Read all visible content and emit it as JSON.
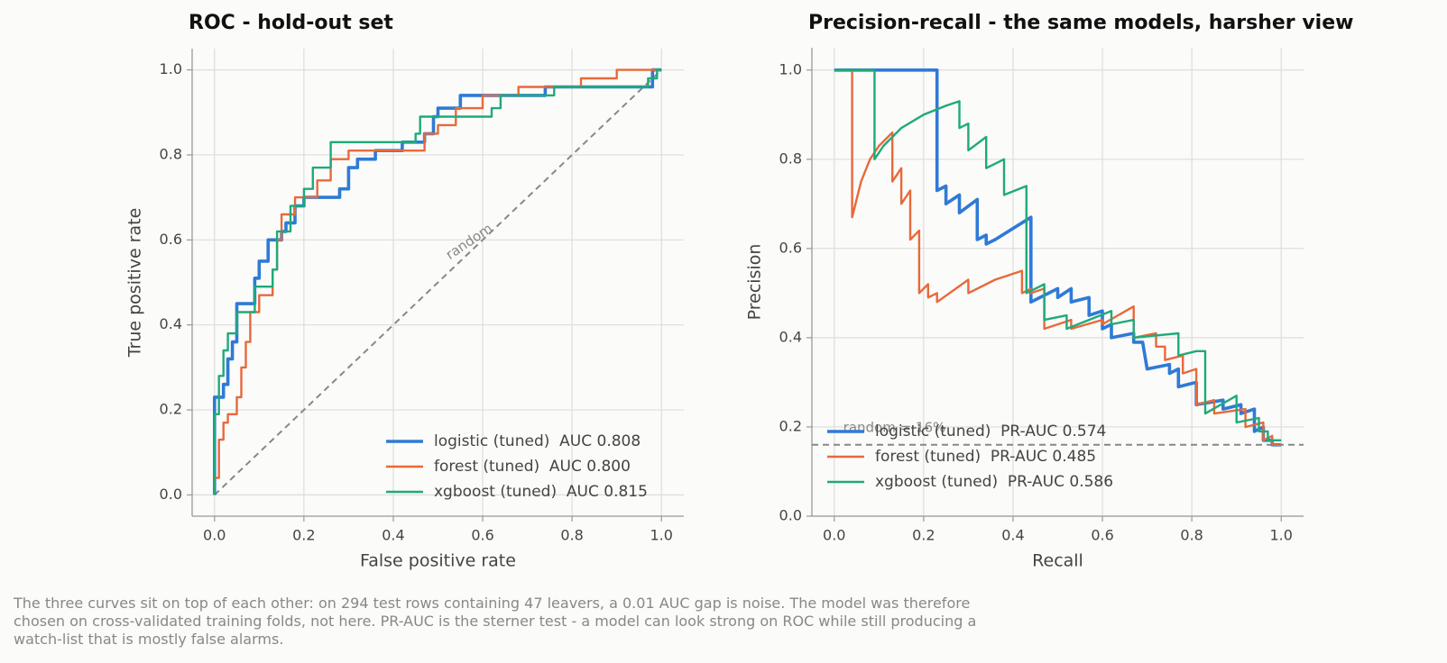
{
  "chart_data": [
    {
      "type": "line",
      "title": "ROC - hold-out set",
      "x_label": "False positive rate",
      "y_label": "True positive rate",
      "xlim": [
        -0.05,
        1.05
      ],
      "ylim": [
        -0.05,
        1.05
      ],
      "xticks": [
        {
          "value": 0,
          "label": "0.0"
        },
        0.2,
        0.4,
        0.6,
        0.8,
        {
          "value": 1,
          "label": "1.0"
        }
      ],
      "yticks": [
        {
          "value": 0,
          "label": "0.0"
        },
        0.2,
        0.4,
        0.6,
        0.8,
        {
          "value": 1,
          "label": "1.0"
        }
      ],
      "grid": true,
      "legend": "lower right",
      "reference": {
        "x": [
          0,
          1
        ],
        "values": [
          0,
          1
        ],
        "color": "#888888"
      },
      "reference_label": "random",
      "series": [
        {
          "name": "logistic (tuned)  AUC 0.808",
          "color": "#2f7ad6",
          "x": [
            0,
            0,
            0.02,
            0.02,
            0.03,
            0.03,
            0.04,
            0.04,
            0.05,
            0.05,
            0.09,
            0.09,
            0.1,
            0.1,
            0.12,
            0.12,
            0.15,
            0.15,
            0.16,
            0.16,
            0.18,
            0.18,
            0.2,
            0.2,
            0.28,
            0.28,
            0.3,
            0.3,
            0.32,
            0.32,
            0.36,
            0.36,
            0.42,
            0.42,
            0.47,
            0.47,
            0.49,
            0.49,
            0.5,
            0.5,
            0.55,
            0.55,
            0.74,
            0.74,
            0.98,
            0.98,
            1.0
          ],
          "values": [
            0,
            0.23,
            0.23,
            0.26,
            0.26,
            0.32,
            0.32,
            0.36,
            0.36,
            0.45,
            0.45,
            0.51,
            0.51,
            0.55,
            0.55,
            0.6,
            0.6,
            0.62,
            0.62,
            0.64,
            0.64,
            0.68,
            0.68,
            0.7,
            0.7,
            0.72,
            0.72,
            0.77,
            0.77,
            0.79,
            0.79,
            0.81,
            0.81,
            0.83,
            0.83,
            0.85,
            0.85,
            0.89,
            0.89,
            0.91,
            0.91,
            0.94,
            0.94,
            0.96,
            0.96,
            1.0,
            1.0
          ]
        },
        {
          "name": "forest (tuned)  AUC 0.800",
          "color": "#e8693a",
          "x": [
            0,
            0,
            0.01,
            0.01,
            0.02,
            0.02,
            0.03,
            0.03,
            0.05,
            0.05,
            0.06,
            0.06,
            0.07,
            0.07,
            0.08,
            0.08,
            0.1,
            0.1,
            0.13,
            0.13,
            0.14,
            0.14,
            0.15,
            0.15,
            0.18,
            0.18,
            0.23,
            0.23,
            0.26,
            0.26,
            0.3,
            0.3,
            0.47,
            0.47,
            0.5,
            0.5,
            0.54,
            0.54,
            0.6,
            0.6,
            0.68,
            0.68,
            0.82,
            0.82,
            0.9,
            0.9,
            1.0
          ],
          "values": [
            0,
            0.04,
            0.04,
            0.13,
            0.13,
            0.17,
            0.17,
            0.19,
            0.19,
            0.23,
            0.23,
            0.3,
            0.3,
            0.36,
            0.36,
            0.43,
            0.43,
            0.47,
            0.47,
            0.53,
            0.53,
            0.6,
            0.6,
            0.66,
            0.66,
            0.7,
            0.7,
            0.74,
            0.74,
            0.79,
            0.79,
            0.81,
            0.81,
            0.85,
            0.85,
            0.87,
            0.87,
            0.91,
            0.91,
            0.94,
            0.94,
            0.96,
            0.96,
            0.98,
            0.98,
            1.0,
            1.0
          ]
        },
        {
          "name": "xgboost (tuned)  AUC 0.815",
          "color": "#1faa7a",
          "x": [
            0,
            0,
            0.01,
            0.01,
            0.02,
            0.02,
            0.03,
            0.03,
            0.05,
            0.05,
            0.09,
            0.09,
            0.13,
            0.13,
            0.14,
            0.14,
            0.17,
            0.17,
            0.2,
            0.2,
            0.22,
            0.22,
            0.26,
            0.26,
            0.45,
            0.45,
            0.46,
            0.46,
            0.62,
            0.62,
            0.64,
            0.64,
            0.76,
            0.76,
            0.97,
            0.97,
            0.99,
            0.99,
            1.0
          ],
          "values": [
            0,
            0.19,
            0.19,
            0.28,
            0.28,
            0.34,
            0.34,
            0.38,
            0.38,
            0.43,
            0.43,
            0.49,
            0.49,
            0.53,
            0.53,
            0.62,
            0.62,
            0.68,
            0.68,
            0.72,
            0.72,
            0.77,
            0.77,
            0.83,
            0.83,
            0.85,
            0.85,
            0.89,
            0.89,
            0.91,
            0.91,
            0.94,
            0.94,
            0.96,
            0.96,
            0.98,
            0.98,
            1.0,
            1.0
          ]
        }
      ]
    },
    {
      "type": "line",
      "title": "Precision-recall - the same models, harsher view",
      "x_label": "Recall",
      "y_label": "Precision",
      "xlim": [
        -0.05,
        1.05
      ],
      "ylim": [
        0,
        1.05
      ],
      "xticks": [
        {
          "value": 0,
          "label": "0.0"
        },
        0.2,
        0.4,
        0.6,
        0.8,
        {
          "value": 1,
          "label": "1.0"
        }
      ],
      "yticks": [
        {
          "value": 0,
          "label": "0.0"
        },
        0.2,
        0.4,
        0.6,
        0.8,
        {
          "value": 1,
          "label": "1.0"
        }
      ],
      "grid": true,
      "legend": "lower left",
      "baseline": 0.16,
      "baseline_label": "random = 16%",
      "baseline_color": "#888888",
      "series": [
        {
          "name": "logistic (tuned)  PR-AUC 0.574",
          "color": "#2f7ad6",
          "x": [
            0,
            0.23,
            0.23,
            0.25,
            0.25,
            0.28,
            0.28,
            0.32,
            0.32,
            0.34,
            0.34,
            0.36,
            0.44,
            0.44,
            0.5,
            0.5,
            0.53,
            0.53,
            0.57,
            0.57,
            0.6,
            0.6,
            0.62,
            0.62,
            0.67,
            0.67,
            0.69,
            0.7,
            0.75,
            0.75,
            0.77,
            0.77,
            0.81,
            0.81,
            0.87,
            0.87,
            0.91,
            0.91,
            0.94,
            0.94,
            0.96,
            0.96,
            0.98,
            0.98,
            1.0
          ],
          "values": [
            1,
            1,
            0.73,
            0.74,
            0.7,
            0.72,
            0.68,
            0.71,
            0.62,
            0.63,
            0.61,
            0.62,
            0.67,
            0.48,
            0.51,
            0.49,
            0.51,
            0.48,
            0.49,
            0.45,
            0.46,
            0.42,
            0.43,
            0.4,
            0.41,
            0.39,
            0.39,
            0.33,
            0.34,
            0.32,
            0.33,
            0.29,
            0.3,
            0.25,
            0.26,
            0.24,
            0.25,
            0.23,
            0.24,
            0.19,
            0.2,
            0.17,
            0.17,
            0.16,
            0.16
          ]
        },
        {
          "name": "forest (tuned)  PR-AUC 0.485",
          "color": "#e8693a",
          "x": [
            0.04,
            0.04,
            0.06,
            0.08,
            0.1,
            0.13,
            0.13,
            0.15,
            0.15,
            0.17,
            0.17,
            0.19,
            0.19,
            0.21,
            0.21,
            0.23,
            0.23,
            0.3,
            0.3,
            0.36,
            0.42,
            0.42,
            0.44,
            0.44,
            0.47,
            0.47,
            0.53,
            0.53,
            0.6,
            0.6,
            0.67,
            0.67,
            0.72,
            0.72,
            0.74,
            0.74,
            0.78,
            0.78,
            0.81,
            0.81,
            0.85,
            0.85,
            0.92,
            0.92,
            0.96,
            0.96,
            0.98,
            0.98,
            1.0
          ],
          "values": [
            1,
            0.67,
            0.75,
            0.8,
            0.83,
            0.86,
            0.75,
            0.78,
            0.7,
            0.73,
            0.62,
            0.64,
            0.5,
            0.52,
            0.49,
            0.5,
            0.48,
            0.53,
            0.5,
            0.53,
            0.55,
            0.5,
            0.51,
            0.5,
            0.51,
            0.42,
            0.44,
            0.42,
            0.44,
            0.43,
            0.47,
            0.4,
            0.41,
            0.38,
            0.38,
            0.35,
            0.36,
            0.32,
            0.33,
            0.25,
            0.26,
            0.23,
            0.24,
            0.2,
            0.21,
            0.17,
            0.18,
            0.16,
            0.16
          ]
        },
        {
          "name": "xgboost (tuned)  PR-AUC 0.586",
          "color": "#1faa7a",
          "x": [
            0,
            0.09,
            0.09,
            0.11,
            0.15,
            0.2,
            0.25,
            0.28,
            0.28,
            0.3,
            0.3,
            0.34,
            0.34,
            0.38,
            0.38,
            0.43,
            0.43,
            0.47,
            0.47,
            0.52,
            0.52,
            0.57,
            0.62,
            0.62,
            0.67,
            0.67,
            0.77,
            0.77,
            0.81,
            0.83,
            0.83,
            0.9,
            0.9,
            0.95,
            0.95,
            0.97,
            0.97,
            1.0
          ],
          "values": [
            1,
            1,
            0.8,
            0.83,
            0.87,
            0.9,
            0.92,
            0.93,
            0.87,
            0.88,
            0.82,
            0.85,
            0.78,
            0.8,
            0.72,
            0.74,
            0.5,
            0.52,
            0.44,
            0.45,
            0.42,
            0.44,
            0.46,
            0.43,
            0.44,
            0.4,
            0.41,
            0.36,
            0.37,
            0.37,
            0.23,
            0.27,
            0.21,
            0.22,
            0.19,
            0.19,
            0.17,
            0.17
          ]
        }
      ]
    }
  ],
  "caption": "The three curves sit on top of each other: on 294 test rows containing 47 leavers, a 0.01 AUC gap is noise. The model was therefore chosen on cross-validated training folds, not here. PR-AUC is the sterner test - a model can look strong on ROC while still producing a watch-list that is mostly false alarms."
}
